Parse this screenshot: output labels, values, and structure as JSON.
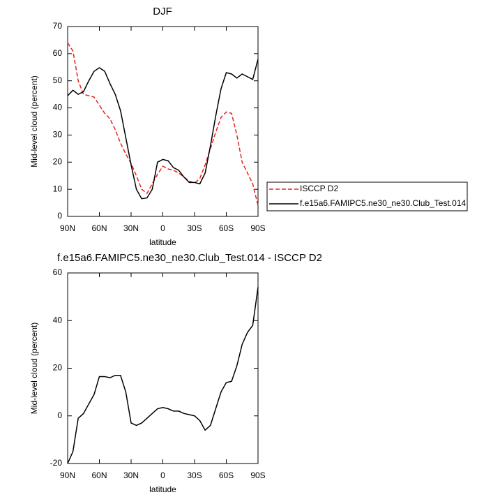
{
  "chart_data": [
    {
      "type": "line",
      "title": "DJF",
      "x_label": "latitude",
      "y_label": "Mid-level cloud (percent)",
      "x": [
        90,
        85,
        80,
        75,
        70,
        65,
        60,
        55,
        50,
        45,
        40,
        35,
        30,
        25,
        20,
        15,
        10,
        5,
        0,
        -5,
        -10,
        -15,
        -20,
        -25,
        -30,
        -35,
        -40,
        -45,
        -50,
        -55,
        -60,
        -65,
        -70,
        -75,
        -80,
        -85,
        -90
      ],
      "xlim": [
        90,
        -90
      ],
      "xticks": [
        {
          "value": 90,
          "label": "90N"
        },
        {
          "value": 60,
          "label": "60N"
        },
        {
          "value": 30,
          "label": "30N"
        },
        0,
        {
          "value": -30,
          "label": "30S"
        },
        {
          "value": -60,
          "label": "60S"
        },
        {
          "value": -90,
          "label": "90S"
        }
      ],
      "ylim": [
        0,
        70
      ],
      "yticks": [
        0,
        10,
        20,
        30,
        40,
        50,
        60,
        70
      ],
      "legend": "right",
      "series": [
        {
          "name": "ISCCP D2",
          "color": "#e8231f",
          "line_style": "dashed",
          "values": [
            64,
            61,
            50,
            45,
            44.5,
            44,
            41,
            38,
            36,
            32,
            27,
            23,
            19.5,
            15,
            10,
            8.5,
            12,
            15.5,
            18.5,
            17.5,
            17,
            16,
            14.5,
            13,
            12.3,
            14,
            19,
            25,
            31,
            36.5,
            38.5,
            38,
            30,
            20,
            16,
            12,
            4
          ]
        },
        {
          "name": "f.e15a6.FAMIPC5.ne30_ne30.Club_Test.014",
          "color": "#000000",
          "line_style": "solid",
          "values": [
            44.5,
            46.5,
            45,
            46,
            50,
            53.5,
            54.8,
            53.5,
            49,
            45,
            39,
            29,
            19,
            10,
            6.5,
            6.8,
            10,
            20,
            21,
            20.5,
            18,
            17,
            14.5,
            12.5,
            12.5,
            12,
            16,
            26,
            37,
            47,
            53,
            52.5,
            51,
            52.5,
            51.5,
            50.5,
            58
          ]
        }
      ]
    },
    {
      "type": "line",
      "title": "f.e15a6.FAMIPC5.ne30_ne30.Club_Test.014 - ISCCP D2",
      "x_label": "latitude",
      "y_label": "Mid-level cloud (percent)",
      "x": [
        90,
        85,
        80,
        75,
        70,
        65,
        60,
        55,
        50,
        45,
        40,
        35,
        30,
        25,
        20,
        15,
        10,
        5,
        0,
        -5,
        -10,
        -15,
        -20,
        -25,
        -30,
        -35,
        -40,
        -45,
        -50,
        -55,
        -60,
        -65,
        -70,
        -75,
        -80,
        -85,
        -90
      ],
      "xlim": [
        90,
        -90
      ],
      "xticks": [
        {
          "value": 90,
          "label": "90N"
        },
        {
          "value": 60,
          "label": "60N"
        },
        {
          "value": 30,
          "label": "30N"
        },
        0,
        {
          "value": -30,
          "label": "30S"
        },
        {
          "value": -60,
          "label": "60S"
        },
        {
          "value": -90,
          "label": "90S"
        }
      ],
      "ylim": [
        -20,
        60
      ],
      "yticks": [
        -20,
        0,
        20,
        40,
        60
      ],
      "series": [
        {
          "color": "#000000",
          "line_style": "solid",
          "values": [
            -20,
            -15,
            -1,
            1,
            5,
            9,
            16.5,
            16.5,
            16,
            17,
            17,
            10,
            -3,
            -4,
            -3,
            -1,
            1,
            3,
            3.5,
            3,
            2,
            2,
            1,
            0.5,
            0,
            -2,
            -6,
            -4,
            3,
            10,
            14,
            14.5,
            21,
            30,
            35,
            38,
            54
          ]
        }
      ]
    }
  ]
}
